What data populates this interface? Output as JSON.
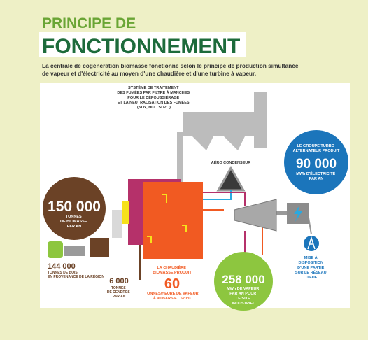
{
  "header": {
    "title_line1": "PRINCIPE DE",
    "title_line2": "FONCTIONNEMENT",
    "intro": [
      "La centrale de cogénération biomasse fonctionne selon le principe de production simultanée",
      "de vapeur et d'électricité au moyen d'une chaudière et d'une turbine à vapeur."
    ]
  },
  "labels": {
    "filter": [
      "SYSTÈME DE TRAITEMENT",
      "DES FUMÉES PAR FILTRE À MANCHES",
      "POUR LE DÉPOUSSIÉRAGE",
      "ET LA NEUTRALISATION DES FUMÉES",
      "(NOx, HCL, SO2...)"
    ],
    "aero": "AÉRO CONDENSEUR",
    "turbine": {
      "lines": [
        "LE GROUPE TURBO",
        "ALTERNATEUR PRODUIT"
      ],
      "figure": "90 000",
      "unit": [
        "MWh D'ÉLECTRICITÉ",
        "PAR AN"
      ]
    },
    "biomass": {
      "figure": "150 000",
      "unit": [
        "TONNES",
        "DE BIOMASSE",
        "PAR AN"
      ]
    },
    "wood": {
      "figure": "144 000",
      "unit": [
        "TONNES DE BOIS",
        "EN PROVENANCE DE LA RÉGION"
      ]
    },
    "ashes": {
      "figure": "6 000",
      "unit": [
        "TONNES",
        "DE CENDRES",
        "PAR AN"
      ]
    },
    "boiler": {
      "lines": [
        "LA CHAUDIÈRE",
        "BIOMASSE PRODUIT"
      ],
      "figure": "60",
      "unit": [
        "TONNES/HEURE DE VAPEUR",
        "À 90 BARS ET 520°C"
      ]
    },
    "steam": {
      "figure": "258 000",
      "unit": [
        "MWh DE VAPEUR",
        "PAR AN POUR",
        "LE SITE",
        "INDUSTRIEL"
      ]
    },
    "grid": [
      "MISE À",
      "DISPOSITION",
      "D'UNE PARTIE",
      "SUR LE RÉSEAU",
      "D'EDF"
    ]
  }
}
